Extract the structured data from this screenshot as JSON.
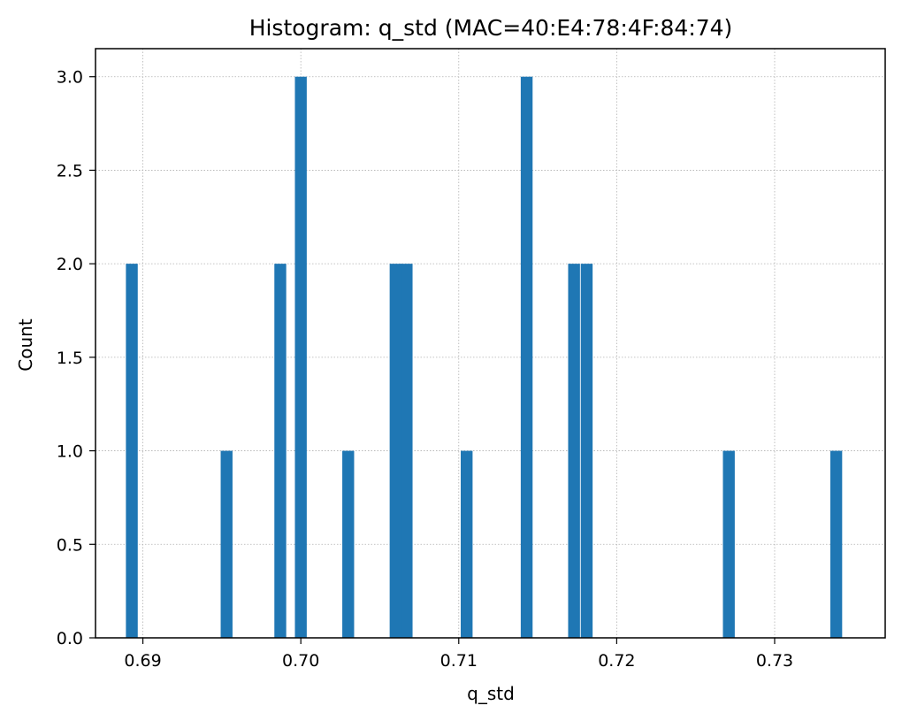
{
  "chart_data": {
    "type": "bar",
    "title": "Histogram: q_std (MAC=40:E4:78:4F:84:74)",
    "xlabel": "q_std",
    "ylabel": "Count",
    "xlim": [
      0.687,
      0.737
    ],
    "ylim": [
      0,
      3.15
    ],
    "xticks": [
      "0.69",
      "0.70",
      "0.71",
      "0.72",
      "0.73"
    ],
    "yticks": [
      "0.0",
      "0.5",
      "1.0",
      "1.5",
      "2.0",
      "2.5",
      "3.0"
    ],
    "grid": true,
    "bar_color": "#1f77b4",
    "bin_width": 0.00075,
    "bins": [
      {
        "x": 0.6893,
        "count": 2
      },
      {
        "x": 0.6953,
        "count": 1
      },
      {
        "x": 0.6987,
        "count": 2
      },
      {
        "x": 0.7,
        "count": 3
      },
      {
        "x": 0.703,
        "count": 1
      },
      {
        "x": 0.706,
        "count": 2
      },
      {
        "x": 0.7067,
        "count": 2
      },
      {
        "x": 0.7105,
        "count": 1
      },
      {
        "x": 0.7143,
        "count": 3
      },
      {
        "x": 0.7173,
        "count": 2
      },
      {
        "x": 0.7181,
        "count": 2
      },
      {
        "x": 0.7271,
        "count": 1
      },
      {
        "x": 0.7339,
        "count": 1
      }
    ]
  }
}
